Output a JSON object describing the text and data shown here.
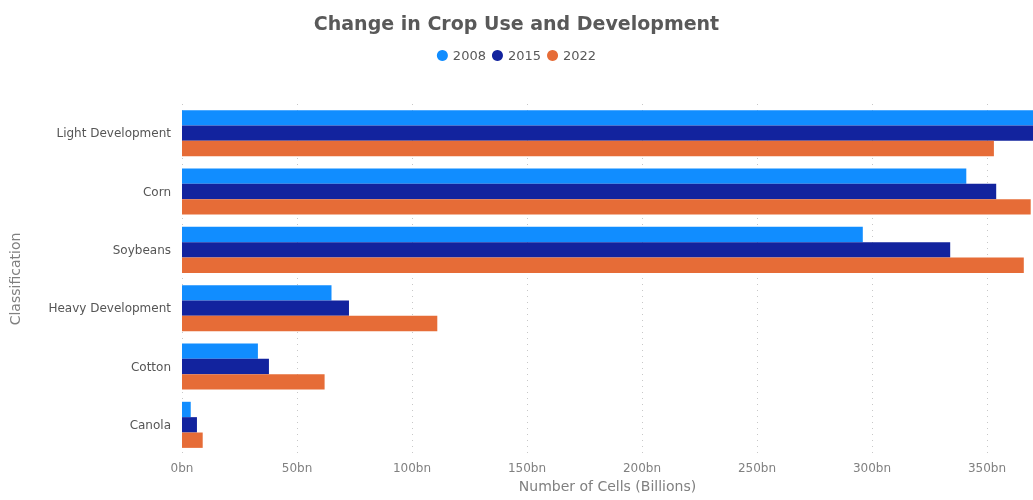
{
  "chart_data": {
    "type": "bar",
    "orientation": "horizontal",
    "title": "Change in Crop Use and Development",
    "xlabel": "Number of Cells (Billions)",
    "ylabel": "Classification",
    "categories": [
      "Light Development",
      "Corn",
      "Soybeans",
      "Heavy Development",
      "Cotton",
      "Canola"
    ],
    "series": [
      {
        "name": "2008",
        "color": "#118dff",
        "values": [
          370,
          341,
          296,
          65,
          33,
          3.8
        ]
      },
      {
        "name": "2015",
        "color": "#12239e",
        "values": [
          370,
          354,
          334,
          72.6,
          37.8,
          6.5
        ]
      },
      {
        "name": "2022",
        "color": "#e66c37",
        "values": [
          353,
          369,
          366,
          111,
          62,
          9
        ]
      }
    ],
    "xlim": [
      0,
      370
    ],
    "xticks": [
      {
        "value": 0,
        "label": "0bn"
      },
      {
        "value": 50,
        "label": "50bn"
      },
      {
        "value": 100,
        "label": "100bn"
      },
      {
        "value": 150,
        "label": "150bn"
      },
      {
        "value": 200,
        "label": "200bn"
      },
      {
        "value": 250,
        "label": "250bn"
      },
      {
        "value": 300,
        "label": "300bn"
      },
      {
        "value": 350,
        "label": "350bn"
      }
    ],
    "grid": "x",
    "legend": "top",
    "marker": "circle"
  }
}
